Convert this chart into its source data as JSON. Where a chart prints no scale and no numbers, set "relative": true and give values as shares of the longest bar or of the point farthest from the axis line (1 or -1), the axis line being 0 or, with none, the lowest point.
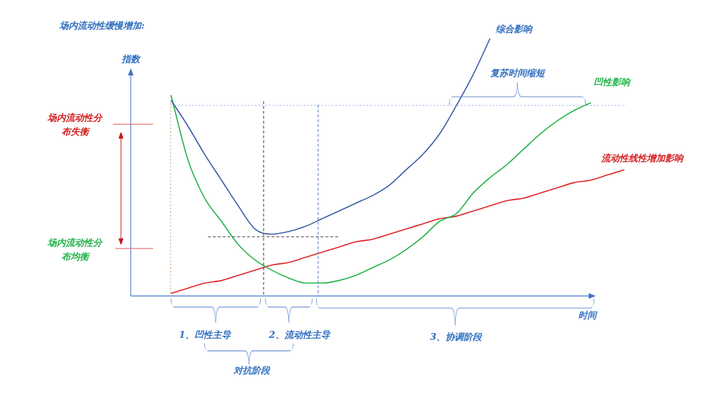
{
  "chart_data": {
    "type": "line",
    "relative": true,
    "title": "场内流动性缓慢增加:",
    "ylabel": "指数",
    "xlabel": "时间",
    "categories": [
      null,
      null,
      null,
      null,
      null,
      null,
      null,
      null,
      null,
      null,
      null,
      null,
      null,
      null,
      null,
      null,
      null,
      null,
      null,
      null,
      null,
      null,
      null,
      null,
      null,
      null,
      null,
      null
    ],
    "series": [
      {
        "name": "综合影响",
        "color": "#3a5aa6",
        "values": [
          0.76,
          0.66,
          0.55,
          0.45,
          0.35,
          0.26,
          0.24,
          0.25,
          0.27,
          0.3,
          0.33,
          0.36,
          0.39,
          0.43,
          0.49,
          0.55,
          0.63,
          0.74,
          0.86,
          1.0,
          null,
          null,
          null,
          null,
          null,
          null,
          null,
          null
        ]
      },
      {
        "name": "凹性影响",
        "color": "#22b34a",
        "values": [
          0.78,
          0.53,
          0.38,
          0.29,
          0.2,
          0.14,
          0.1,
          0.07,
          0.05,
          0.05,
          0.06,
          0.08,
          0.11,
          0.14,
          0.18,
          0.23,
          0.29,
          0.32,
          0.4,
          0.46,
          0.51,
          0.57,
          0.63,
          0.68,
          0.72,
          0.75,
          null,
          null
        ]
      },
      {
        "name": "流动性线性增加影响",
        "color": "#e02020",
        "values": [
          0.01,
          0.03,
          0.05,
          0.06,
          0.08,
          0.1,
          0.12,
          0.13,
          0.15,
          0.17,
          0.19,
          0.21,
          0.22,
          0.24,
          0.26,
          0.28,
          0.3,
          0.31,
          0.33,
          0.35,
          0.37,
          0.38,
          0.4,
          0.42,
          0.44,
          0.45,
          0.47,
          0.49
        ]
      }
    ],
    "annotations": [
      "场内流动性分布失衡",
      "场内流动性分布均衡",
      "复苏时间缩短",
      "1、凹性主导",
      "2、流动性主导",
      "3、协调阶段",
      "对抗阶段"
    ],
    "ref_lines": [
      {
        "axis": "y",
        "value": 0.74,
        "color": "#8aa6d8",
        "line_style": "dotted"
      },
      {
        "axis": "y",
        "value": 0.23,
        "color": "#333333",
        "line_style": "dashed"
      }
    ],
    "legend": false,
    "marker": "none",
    "line_style": "solid"
  }
}
